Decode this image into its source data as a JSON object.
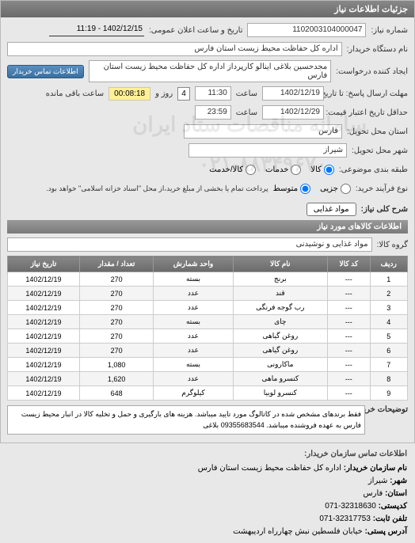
{
  "header": {
    "title": "جزئیات اطلاعات نیاز"
  },
  "info": {
    "reqno_label": "شماره نیاز:",
    "reqno": "1102003104000047",
    "announce_label": "تاریخ و ساعت اعلان عمومی:",
    "announce": "1402/12/15 - 11:19",
    "buyer_org_label": "نام دستگاه خریدار:",
    "buyer_org": "اداره کل حفاظت محیط زیست استان فارس",
    "requester_label": "ایجاد کننده درخواست:",
    "requester": "مجدحسین بلاغی اینالو کارپرداز اداره کل حفاظت محیط زیست استان فارس",
    "contact_btn": "اطلاعات تماس خریدار",
    "deadline1_label": "مهلت ارسال پاسخ: تا تاریخ:",
    "deadline1_date": "1402/12/19",
    "deadline1_time_label": "ساعت",
    "deadline1_time": "11:30",
    "remain_days_label": "روز و",
    "remain_days": "4",
    "remain_time": "00:08:18",
    "remain_suffix": "ساعت باقی مانده",
    "deadline2_label": "حداقل تاریخ اعتبار قیمت: تا تاریخ:",
    "deadline2_date": "1402/12/29",
    "deadline2_time_label": "ساعت",
    "deadline2_time": "23:59",
    "province_label": "استان محل تحویل:",
    "province": "فارس",
    "city_label": "شهر محل تحویل:",
    "city": "شیراز",
    "class_label": "طبقه بندی موضوعی:",
    "class_options": {
      "kala": "کالا",
      "khadamat": "خدمات",
      "kalakhadamat": "کالا/خدمت"
    },
    "class_selected": "kala",
    "process_label": "نوع فرآیند خرید:",
    "process_options": {
      "jozi": "جزیی",
      "motavasset": "متوسط"
    },
    "process_selected": "motavasset",
    "process_note": "پرداخت تمام یا بخشی از مبلغ خرید،از محل \"اسناد خزانه اسلامی\" خواهد بود.",
    "general_label": "شرح کلی نیاز:",
    "general_chip": "مواد غذایی"
  },
  "items_section": {
    "title": "اطلاعات کالاهای مورد نیاز",
    "group_label": "گروه کالا:",
    "group_value": "مواد غذایی و نوشیدنی",
    "columns": [
      "ردیف",
      "کد کالا",
      "نام کالا",
      "واحد شمارش",
      "تعداد / مقدار",
      "تاریخ نیاز"
    ],
    "rows": [
      [
        "1",
        "---",
        "برنج",
        "بسته",
        "270",
        "1402/12/19"
      ],
      [
        "2",
        "---",
        "قند",
        "عدد",
        "270",
        "1402/12/19"
      ],
      [
        "3",
        "---",
        "رب گوجه فرنگی",
        "عدد",
        "270",
        "1402/12/19"
      ],
      [
        "4",
        "---",
        "چای",
        "بسته",
        "270",
        "1402/12/19"
      ],
      [
        "5",
        "---",
        "روغن گیاهی",
        "عدد",
        "270",
        "1402/12/19"
      ],
      [
        "6",
        "---",
        "روغن گیاهی",
        "عدد",
        "270",
        "1402/12/19"
      ],
      [
        "7",
        "---",
        "ماکارونی",
        "بسته",
        "1,080",
        "1402/12/19"
      ],
      [
        "8",
        "---",
        "کنسرو ماهی",
        "عدد",
        "1,620",
        "1402/12/19"
      ],
      [
        "9",
        "---",
        "کنسرو لوبیا",
        "کیلوگرم",
        "648",
        "1402/12/19"
      ]
    ],
    "notes_label": "توضیحات خریدار:",
    "notes": "فقط برندهای مشخص شده در کاتالوگ مورد تایید میباشد. هزینه های بارگیری و حمل و تخلیه کالا در انبار محیط زیست فارس به عهده فروشنده میباشد. 09355683544 بلاغی"
  },
  "contact": {
    "header": "اطلاعات تماس سازمان خریدار:",
    "org_label": "نام سازمان خریدار:",
    "org": "اداره کل حفاظت محیط زیست استان فارس",
    "city_label": "شهر:",
    "city": "شیراز",
    "province_label": "استان:",
    "province": "فارس",
    "postal_label": "کدپستی:",
    "postal": "32318630-071",
    "phone_label": "تلفن ثابت:",
    "phone": "32317753-071",
    "address_label": "آدرس پستی:",
    "address": "خیابان فلسطین نبش چهارراه اردیبهشت"
  },
  "watermarks": [
    "سامانه مناقصات ستاد ایران",
    "۰۲۱-۸۸۳۴۹۶۷۰"
  ]
}
